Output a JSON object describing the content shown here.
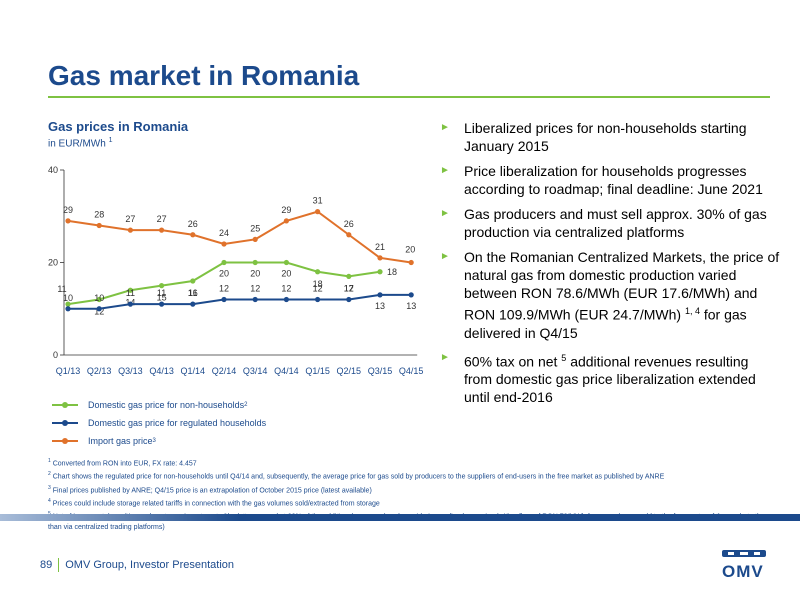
{
  "page": {
    "title": "Gas market in Romania",
    "footer": {
      "page_number": "89",
      "text": "OMV Group, Investor Presentation"
    },
    "logo": {
      "text": "OMV"
    }
  },
  "chart_data": {
    "type": "line",
    "title": "Gas prices in Romania",
    "subtitle": "in EUR/MWh",
    "subtitle_footnote": "1",
    "ylim": [
      0,
      40
    ],
    "yticks": [
      "0",
      "20",
      "40"
    ],
    "categories": [
      "Q1/13",
      "Q2/13",
      "Q3/13",
      "Q4/13",
      "Q1/14",
      "Q2/14",
      "Q3/14",
      "Q4/14",
      "Q1/15",
      "Q2/15",
      "Q3/15",
      "Q4/15"
    ],
    "series": [
      {
        "name": "Domestic gas price for non-households",
        "footnote": "2",
        "color": "#7ec242",
        "values": [
          11,
          12,
          14,
          15,
          16,
          20,
          20,
          20,
          18,
          17,
          18,
          null
        ]
      },
      {
        "name": "Domestic gas price for regulated households",
        "footnote": "",
        "color": "#1c4a8c",
        "values": [
          10,
          10,
          11,
          11,
          11,
          12,
          12,
          12,
          12,
          12,
          13,
          13
        ]
      },
      {
        "name": "Import gas price",
        "footnote": "3",
        "color": "#e0722b",
        "values": [
          29,
          28,
          27,
          27,
          26,
          24,
          25,
          29,
          31,
          26,
          21,
          20
        ]
      }
    ],
    "grid": false,
    "legend_position": "bottom-left"
  },
  "bullets": [
    {
      "text": "Liberalized prices for non-households starting January 2015",
      "sup": "",
      "tail": ""
    },
    {
      "text": "Price liberalization for households progresses according to roadmap; final deadline: June 2021",
      "sup": "",
      "tail": ""
    },
    {
      "text": "Gas producers and must sell approx. 30% of gas production via centralized platforms",
      "sup": "",
      "tail": ""
    },
    {
      "text": "On the Romanian Centralized Markets, the price of natural gas from domestic production varied between RON 78.6/MWh (EUR 17.6/MWh) and RON 109.9/MWh (EUR 24.7/MWh)",
      "sup": "1, 4",
      "tail": " for gas delivered in Q4/15"
    },
    {
      "text": "60% tax on net",
      "sup": "5",
      "tail": " additional revenues resulting from domestic gas price liberalization extended until end-2016"
    }
  ],
  "bullet_marker": "►",
  "footnotes": [
    {
      "num": "1",
      "text": "Converted from RON into EUR, FX rate: 4.457"
    },
    {
      "num": "2",
      "text": "Chart shows the regulated price for non-households until Q4/14 and, subsequently, the average price for gas sold by producers to the suppliers of end-users in the free market as published by ANRE"
    },
    {
      "num": "3",
      "text": "Final prices published by ANRE; Q4/15 price is an extrapolation of October 2015 price (latest available)"
    },
    {
      "num": "4",
      "text": "Prices could include storage related tariffs in connection with the gas volumes sold/extracted from storage"
    },
    {
      "num": "5",
      "text": "Net of incremental royalties and upstream investments (the latter capped at 30% of the additional revenues) and considering realized gas price (with a floor of RON 72/MWh for gas volumes sold to the free sector of the market other than via centralized trading platforms)"
    }
  ]
}
